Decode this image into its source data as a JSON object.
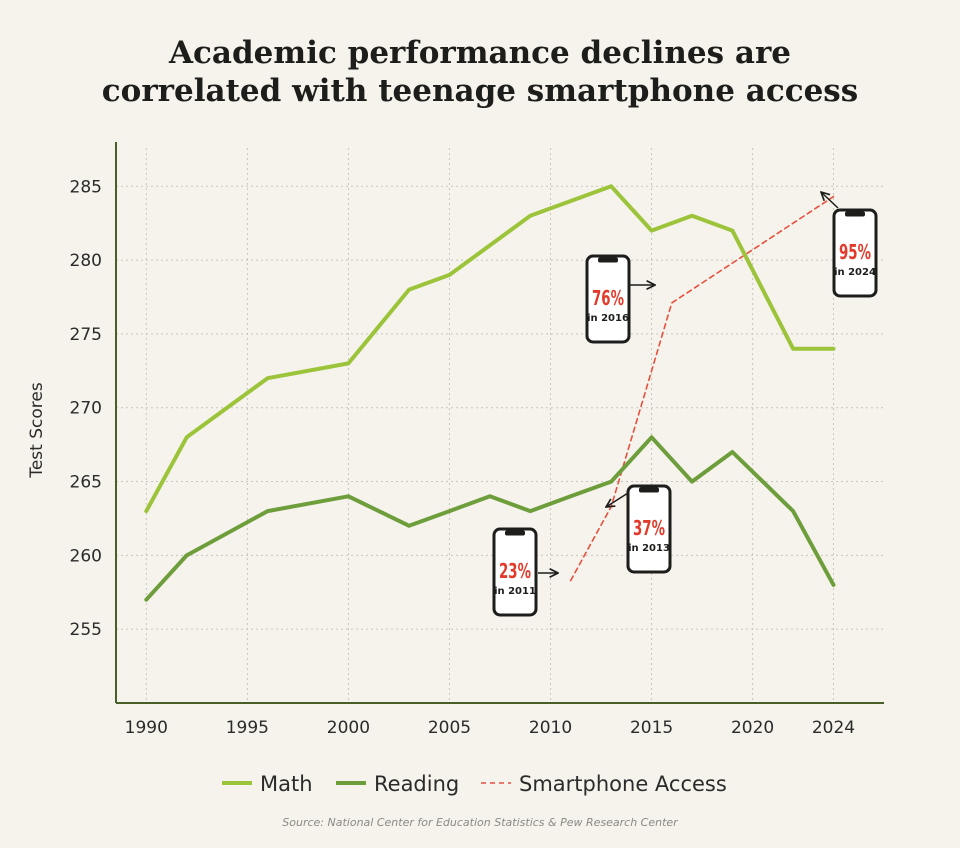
{
  "chart_data": {
    "type": "line",
    "title_lines": [
      "Academic performance declines are",
      "correlated with teenage smartphone access"
    ],
    "ylabel": "Test Scores",
    "xlabel": "",
    "xlim": [
      1988.5,
      2026.5
    ],
    "ylim": [
      250,
      288
    ],
    "x_ticks": [
      "1990",
      "1995",
      "2000",
      "2005",
      "2010",
      "2015",
      "2020",
      "2024"
    ],
    "y_ticks": [
      "255",
      "260",
      "265",
      "270",
      "275",
      "280",
      "285"
    ],
    "grid": true,
    "legend_position": "bottom",
    "series": [
      {
        "name": "Math",
        "color": "#9cc43a",
        "style": "solid",
        "x": [
          1990,
          1992,
          1996,
          2000,
          2003,
          2005,
          2009,
          2013,
          2015,
          2017,
          2019,
          2022,
          2024
        ],
        "y": [
          263,
          268,
          272,
          273,
          278,
          279,
          283,
          285,
          282,
          283,
          282,
          274,
          274
        ]
      },
      {
        "name": "Reading",
        "color": "#6e9e3c",
        "style": "solid",
        "x": [
          1990,
          1992,
          1996,
          2000,
          2003,
          2005,
          2007,
          2009,
          2011,
          2013,
          2015,
          2017,
          2019,
          2022,
          2024
        ],
        "y": [
          257,
          260,
          263,
          264,
          262,
          263,
          264,
          263,
          264,
          265,
          268,
          265,
          267,
          263,
          258
        ]
      },
      {
        "name": "Smartphone Access",
        "color": "#e8503e",
        "style": "dashed",
        "x": [
          2011,
          2013,
          2016,
          2024
        ],
        "y": [
          258.3,
          263.3,
          277.1,
          284.3
        ]
      }
    ],
    "annotations": [
      {
        "pct": "23%",
        "label": "in 2011",
        "year": 2011,
        "value": 258.3
      },
      {
        "pct": "37%",
        "label": "in 2013",
        "year": 2013,
        "value": 263.3
      },
      {
        "pct": "76%",
        "label": "in 2016",
        "year": 2016,
        "value": 277.1
      },
      {
        "pct": "95%",
        "label": "in 2024",
        "year": 2024,
        "value": 284.3
      }
    ],
    "source": "Source: National Center for Education Statistics & Pew Research Center"
  }
}
